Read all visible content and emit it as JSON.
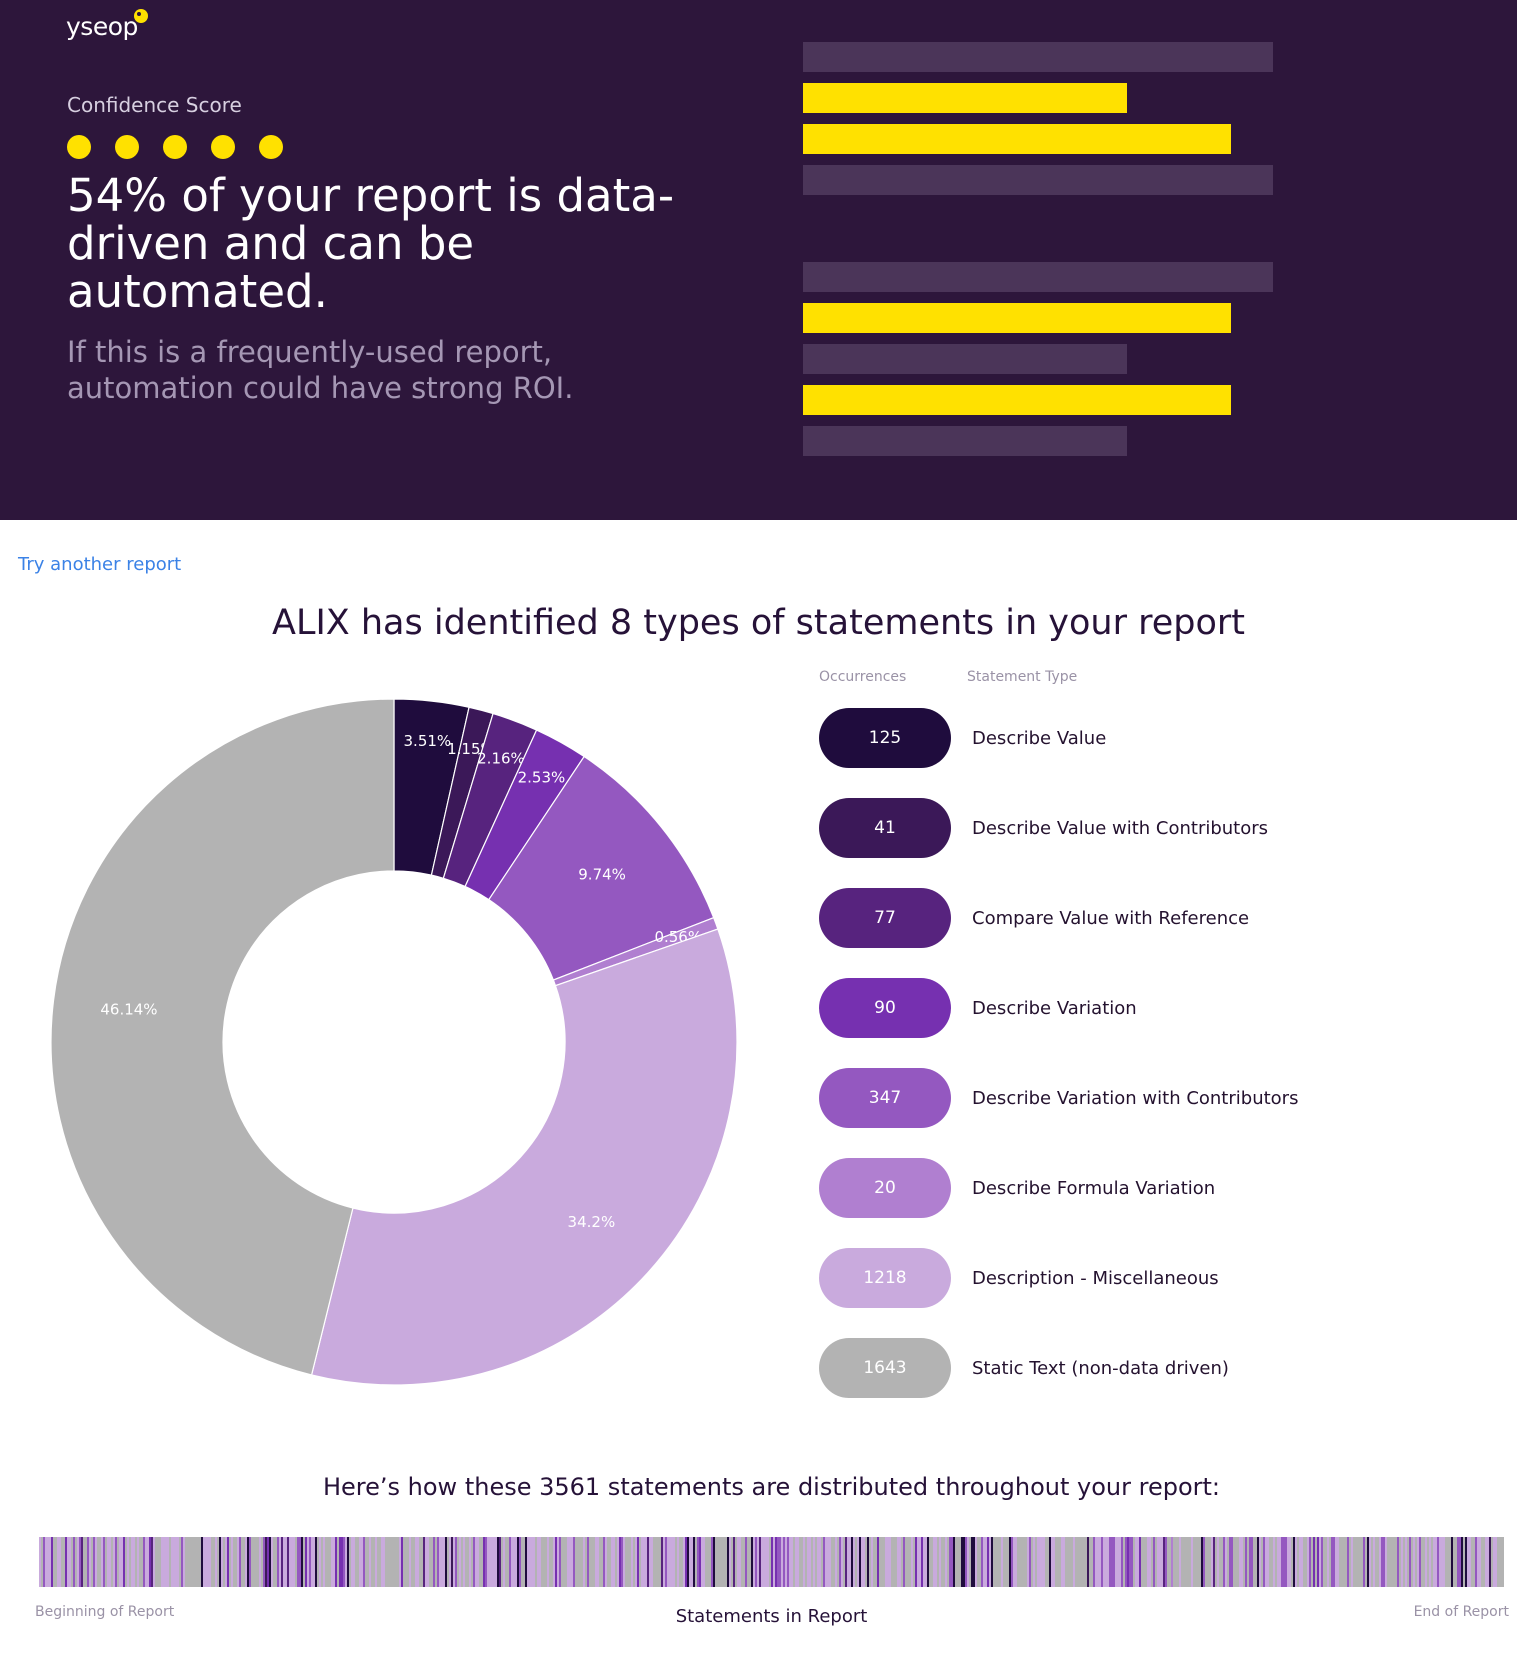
{
  "brand": {
    "logo_text": "yseop",
    "accent": "#ffe100",
    "hero_bg": "#2d163b"
  },
  "hero": {
    "confidence_label": "Confidence Score",
    "confidence_score": {
      "filled": 5,
      "total": 5
    },
    "headline": "54% of your report is data-driven and can be automated.",
    "subline": "If this is a frequently-used report, automation could have strong ROI.",
    "bars": [
      {
        "level": 1.0,
        "state": "dim"
      },
      {
        "level": 0.69,
        "state": "lit"
      },
      {
        "level": 0.91,
        "state": "lit"
      },
      {
        "level": 1.0,
        "state": "dim"
      },
      {
        "level": 1.0,
        "state": "dim"
      },
      {
        "level": 0.91,
        "state": "lit"
      },
      {
        "level": 0.69,
        "state": "dim"
      },
      {
        "level": 0.91,
        "state": "lit"
      },
      {
        "level": 0.69,
        "state": "dim"
      }
    ]
  },
  "link": {
    "try_another": "Try another report"
  },
  "statements": {
    "title": "ALIX has identified 8 types of statements in your report",
    "col_occurrences": "Occurrences",
    "col_type": "Statement Type"
  },
  "chart_data": {
    "type": "pie",
    "labels": [
      "Describe Value",
      "Describe Value with Contributors",
      "Compare Value with Reference",
      "Describe Variation",
      "Describe Variation with Contributors",
      "Describe Formula Variation",
      "Description - Miscellaneous",
      "Static Text (non-data driven)"
    ],
    "values": [
      125,
      41,
      77,
      90,
      347,
      20,
      1218,
      1643
    ],
    "percent_labels": [
      "3.51%",
      "1.15%",
      "2.16%",
      "2.53%",
      "9.74%",
      "0.56%",
      "34.2%",
      "46.14%"
    ],
    "colors": [
      "#1f0c3d",
      "#3b1858",
      "#57237e",
      "#7630b0",
      "#9458c0",
      "#b07fd0",
      "#c9aadd",
      "#b3b3b3"
    ],
    "donut": true
  },
  "distribution": {
    "title": "Here’s how these 3561 statements are distributed throughout your report:",
    "axis_start": "Beginning of Report",
    "axis_end": "End of Report",
    "axis_label": "Statements in Report"
  }
}
